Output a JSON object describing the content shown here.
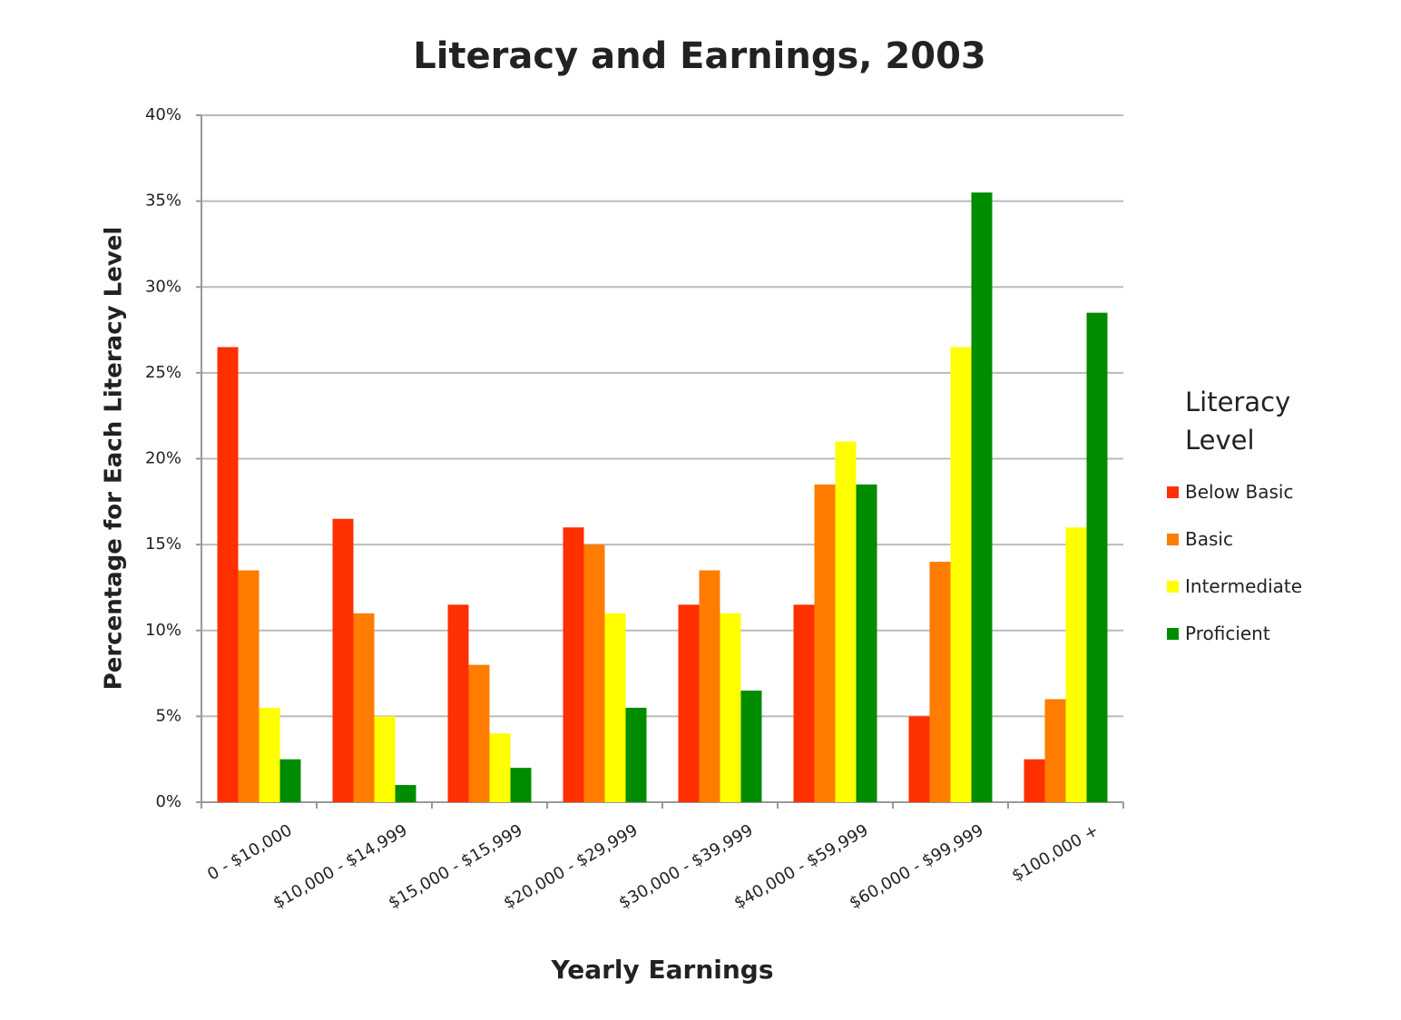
{
  "chart_data": {
    "type": "bar",
    "title": "Literacy and Earnings, 2003",
    "x_label": "Yearly Earnings",
    "y_label": "Percentage for Each Literacy Level",
    "legend_title": "Literacy Level",
    "legend_position": "right",
    "grid": true,
    "categories": [
      "0 - $10,000",
      "$10,000 - $14,999",
      "$15,000 - $15,999",
      "$20,000 - $29,999",
      "$30,000 - $39,999",
      "$40,000 - $59,999",
      "$60,000 - $99,999",
      "$100,000 +"
    ],
    "series": [
      {
        "name": "Below Basic",
        "color": "#ff3000",
        "values": [
          26.5,
          16.5,
          11.5,
          16,
          11.5,
          11.5,
          5,
          2.5
        ]
      },
      {
        "name": "Basic",
        "color": "#ff7c00",
        "values": [
          13.5,
          11,
          8,
          15,
          13.5,
          18.5,
          14,
          6
        ]
      },
      {
        "name": "Intermediate",
        "color": "#ffff00",
        "values": [
          5.5,
          5,
          4,
          11,
          11,
          21,
          26.5,
          16
        ]
      },
      {
        "name": "Proficient",
        "color": "#008c00",
        "values": [
          2.5,
          1,
          2,
          5.5,
          6.5,
          18.5,
          35.5,
          28.5
        ]
      }
    ],
    "ylim": [
      0,
      40
    ],
    "yticks": [
      {
        "value": 0,
        "label": "0%"
      },
      {
        "value": 5,
        "label": "5%"
      },
      {
        "value": 10,
        "label": "10%"
      },
      {
        "value": 15,
        "label": "15%"
      },
      {
        "value": 20,
        "label": "20%"
      },
      {
        "value": 25,
        "label": "25%"
      },
      {
        "value": 30,
        "label": "30%"
      },
      {
        "value": 35,
        "label": "35%"
      },
      {
        "value": 40,
        "label": "40%"
      }
    ]
  }
}
